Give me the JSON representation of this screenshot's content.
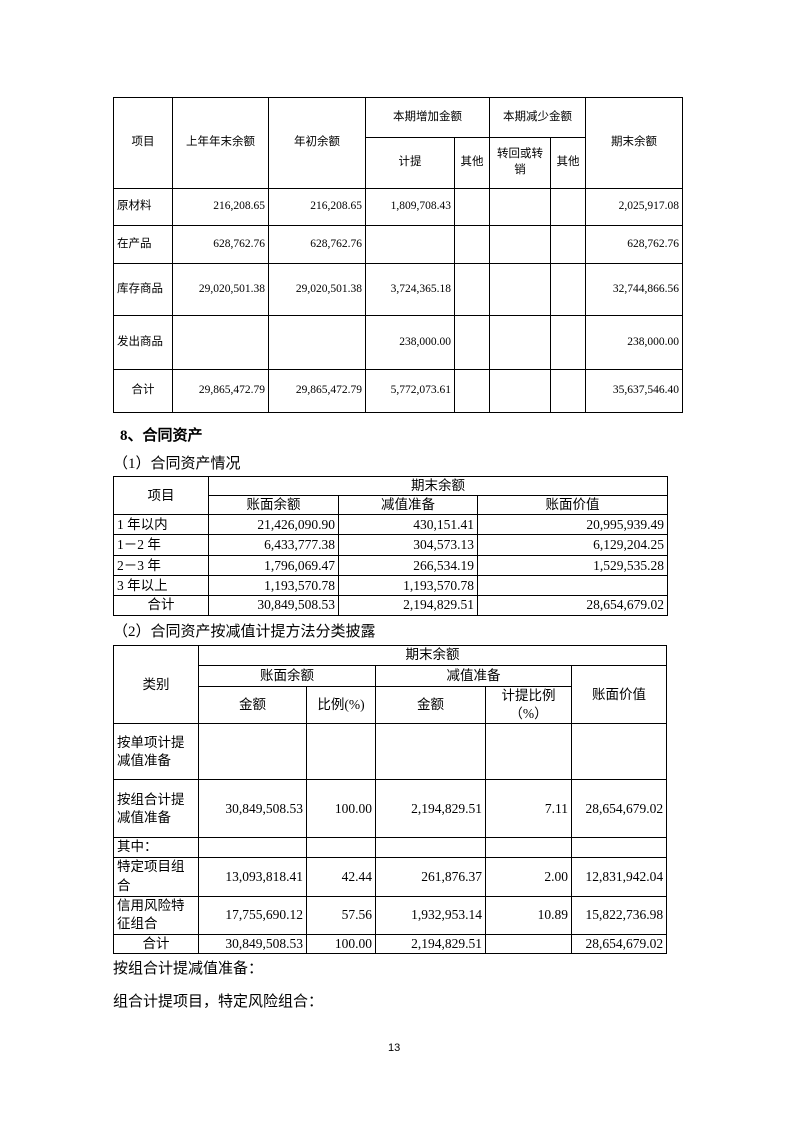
{
  "table1": {
    "headers": {
      "item": "项目",
      "prev_year_end": "上年年末余额",
      "year_begin": "年初余额",
      "increase": "本期增加金额",
      "increase_provision": "计提",
      "increase_other": "其他",
      "decrease": "本期减少金额",
      "decrease_reversal": "转回或转销",
      "decrease_other": "其他",
      "period_end": "期末余额"
    },
    "rows": [
      {
        "item": "原材料",
        "prev": "216,208.65",
        "begin": "216,208.65",
        "provision": "1,809,708.43",
        "inc_other": "",
        "reversal": "",
        "dec_other": "",
        "end": "2,025,917.08"
      },
      {
        "item": "在产品",
        "prev": "628,762.76",
        "begin": "628,762.76",
        "provision": "",
        "inc_other": "",
        "reversal": "",
        "dec_other": "",
        "end": "628,762.76"
      },
      {
        "item": "库存商品",
        "prev": "29,020,501.38",
        "begin": "29,020,501.38",
        "provision": "3,724,365.18",
        "inc_other": "",
        "reversal": "",
        "dec_other": "",
        "end": "32,744,866.56"
      },
      {
        "item": "发出商品",
        "prev": "",
        "begin": "",
        "provision": "238,000.00",
        "inc_other": "",
        "reversal": "",
        "dec_other": "",
        "end": "238,000.00"
      },
      {
        "item": "合计",
        "prev": "29,865,472.79",
        "begin": "29,865,472.79",
        "provision": "5,772,073.61",
        "inc_other": "",
        "reversal": "",
        "dec_other": "",
        "end": "35,637,546.40"
      }
    ]
  },
  "section_title": "8、合同资产",
  "sub1": "（1）合同资产情况",
  "table2": {
    "headers": {
      "item": "项目",
      "period_end": "期末余额",
      "book_balance": "账面余额",
      "impairment": "减值准备",
      "book_value": "账面价值"
    },
    "rows": [
      {
        "item": "1 年以内",
        "balance": "21,426,090.90",
        "impairment": "430,151.41",
        "value": "20,995,939.49"
      },
      {
        "item": "1－2 年",
        "balance": "6,433,777.38",
        "impairment": "304,573.13",
        "value": "6,129,204.25"
      },
      {
        "item": "2－3 年",
        "balance": "1,796,069.47",
        "impairment": "266,534.19",
        "value": "1,529,535.28"
      },
      {
        "item": "3 年以上",
        "balance": "1,193,570.78",
        "impairment": "1,193,570.78",
        "value": ""
      },
      {
        "item": "合计",
        "balance": "30,849,508.53",
        "impairment": "2,194,829.51",
        "value": "28,654,679.02"
      }
    ]
  },
  "sub2": "（2）合同资产按减值计提方法分类披露",
  "table3": {
    "headers": {
      "category": "类别",
      "period_end": "期末余额",
      "book_balance": "账面余额",
      "impairment": "减值准备",
      "amount": "金额",
      "ratio": "比例(%)",
      "amount2": "金额",
      "provision_ratio": "计提比例（%）",
      "book_value": "账面价值"
    },
    "rows": [
      {
        "category": "按单项计提减值准备",
        "amount": "",
        "ratio": "",
        "imp": "",
        "imp_ratio": "",
        "value": ""
      },
      {
        "category": "按组合计提减值准备",
        "amount": "30,849,508.53",
        "ratio": "100.00",
        "imp": "2,194,829.51",
        "imp_ratio": "7.11",
        "value": "28,654,679.02"
      },
      {
        "category": "其中：",
        "amount": "",
        "ratio": "",
        "imp": "",
        "imp_ratio": "",
        "value": ""
      },
      {
        "category": "特定项目组合",
        "amount": "13,093,818.41",
        "ratio": "42.44",
        "imp": "261,876.37",
        "imp_ratio": "2.00",
        "value": "12,831,942.04"
      },
      {
        "category": "信用风险特征组合",
        "amount": "17,755,690.12",
        "ratio": "57.56",
        "imp": "1,932,953.14",
        "imp_ratio": "10.89",
        "value": "15,822,736.98"
      },
      {
        "category": "合计",
        "amount": "30,849,508.53",
        "ratio": "100.00",
        "imp": "2,194,829.51",
        "imp_ratio": "",
        "value": "28,654,679.02"
      }
    ]
  },
  "para1": "按组合计提减值准备：",
  "para2": "组合计提项目，特定风险组合：",
  "page_number": "13"
}
